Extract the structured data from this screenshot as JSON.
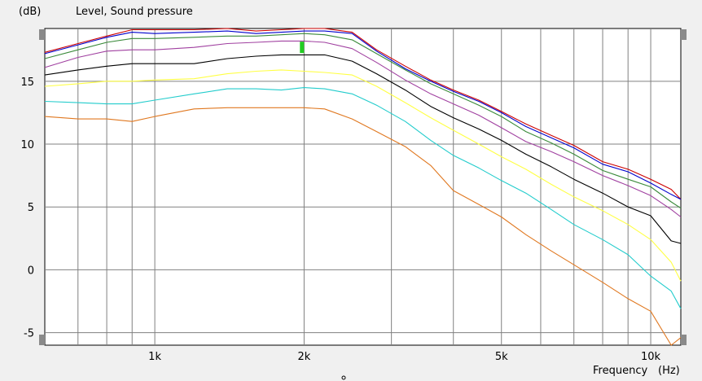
{
  "chart_data": {
    "type": "line",
    "title": "Level, Sound pressure",
    "ylabel": "(dB)",
    "xlabel": "Frequency",
    "xunit": "(Hz)",
    "xscale": "log",
    "xlim": [
      600,
      11500
    ],
    "ylim": [
      -6,
      19.2
    ],
    "yticks": [
      -5,
      0,
      5,
      10,
      15
    ],
    "xticks": [
      1000,
      2000,
      5000,
      10000
    ],
    "xtick_labels": [
      "1k",
      "2k",
      "5k",
      "10k"
    ],
    "grid": true,
    "background": "#ffffff",
    "series": [
      {
        "color": "#cc0000",
        "points": [
          [
            600,
            17.3
          ],
          [
            700,
            18.0
          ],
          [
            800,
            18.6
          ],
          [
            900,
            19.1
          ],
          [
            1000,
            19.1
          ],
          [
            1200,
            19.1
          ],
          [
            1400,
            19.2
          ],
          [
            1600,
            19.0
          ],
          [
            1800,
            19.1
          ],
          [
            2000,
            19.2
          ],
          [
            2200,
            19.2
          ],
          [
            2500,
            18.9
          ],
          [
            2800,
            17.5
          ],
          [
            3200,
            16.2
          ],
          [
            3600,
            15.1
          ],
          [
            4000,
            14.3
          ],
          [
            4500,
            13.5
          ],
          [
            5000,
            12.6
          ],
          [
            5600,
            11.6
          ],
          [
            6300,
            10.7
          ],
          [
            7000,
            9.9
          ],
          [
            8000,
            8.6
          ],
          [
            9000,
            8.0
          ],
          [
            10000,
            7.2
          ],
          [
            11000,
            6.4
          ],
          [
            11500,
            5.6
          ]
        ]
      },
      {
        "color": "#0000cc",
        "points": [
          [
            600,
            17.2
          ],
          [
            700,
            17.9
          ],
          [
            800,
            18.5
          ],
          [
            900,
            18.9
          ],
          [
            1000,
            18.8
          ],
          [
            1200,
            18.9
          ],
          [
            1400,
            19.0
          ],
          [
            1600,
            18.8
          ],
          [
            1800,
            18.9
          ],
          [
            2000,
            19.0
          ],
          [
            2200,
            19.0
          ],
          [
            2500,
            18.8
          ],
          [
            2800,
            17.4
          ],
          [
            3200,
            16.0
          ],
          [
            3600,
            15.0
          ],
          [
            4000,
            14.2
          ],
          [
            4500,
            13.4
          ],
          [
            5000,
            12.5
          ],
          [
            5600,
            11.4
          ],
          [
            6300,
            10.5
          ],
          [
            7000,
            9.7
          ],
          [
            8000,
            8.4
          ],
          [
            9000,
            7.8
          ],
          [
            10000,
            6.9
          ],
          [
            11000,
            6.0
          ],
          [
            11500,
            5.6
          ]
        ]
      },
      {
        "color": "#3a8a3a",
        "points": [
          [
            600,
            16.8
          ],
          [
            700,
            17.5
          ],
          [
            800,
            18.1
          ],
          [
            900,
            18.4
          ],
          [
            1000,
            18.4
          ],
          [
            1200,
            18.5
          ],
          [
            1400,
            18.6
          ],
          [
            1600,
            18.6
          ],
          [
            1800,
            18.7
          ],
          [
            2000,
            18.8
          ],
          [
            2200,
            18.7
          ],
          [
            2500,
            18.3
          ],
          [
            2800,
            17.2
          ],
          [
            3200,
            15.9
          ],
          [
            3600,
            14.8
          ],
          [
            4000,
            14.0
          ],
          [
            4500,
            13.1
          ],
          [
            5000,
            12.2
          ],
          [
            5600,
            11.0
          ],
          [
            6300,
            10.1
          ],
          [
            7000,
            9.2
          ],
          [
            8000,
            7.9
          ],
          [
            9000,
            7.2
          ],
          [
            10000,
            6.6
          ],
          [
            11000,
            5.4
          ],
          [
            11500,
            4.9
          ]
        ]
      },
      {
        "color": "#a040a0",
        "points": [
          [
            600,
            16.1
          ],
          [
            700,
            16.9
          ],
          [
            800,
            17.4
          ],
          [
            900,
            17.5
          ],
          [
            1000,
            17.5
          ],
          [
            1200,
            17.7
          ],
          [
            1400,
            18.0
          ],
          [
            1600,
            18.1
          ],
          [
            1800,
            18.2
          ],
          [
            2000,
            18.2
          ],
          [
            2200,
            18.1
          ],
          [
            2500,
            17.6
          ],
          [
            2800,
            16.5
          ],
          [
            3200,
            15.1
          ],
          [
            3600,
            14.0
          ],
          [
            4000,
            13.2
          ],
          [
            4500,
            12.3
          ],
          [
            5000,
            11.3
          ],
          [
            5600,
            10.2
          ],
          [
            6300,
            9.4
          ],
          [
            7000,
            8.6
          ],
          [
            8000,
            7.5
          ],
          [
            9000,
            6.7
          ],
          [
            10000,
            5.9
          ],
          [
            11000,
            4.8
          ],
          [
            11500,
            4.2
          ]
        ]
      },
      {
        "color": "#000000",
        "points": [
          [
            600,
            15.5
          ],
          [
            700,
            15.9
          ],
          [
            800,
            16.2
          ],
          [
            900,
            16.4
          ],
          [
            1000,
            16.4
          ],
          [
            1200,
            16.4
          ],
          [
            1400,
            16.8
          ],
          [
            1600,
            17.0
          ],
          [
            1800,
            17.1
          ],
          [
            2000,
            17.1
          ],
          [
            2200,
            17.1
          ],
          [
            2500,
            16.6
          ],
          [
            2800,
            15.6
          ],
          [
            3200,
            14.3
          ],
          [
            3600,
            13.0
          ],
          [
            4000,
            12.1
          ],
          [
            4500,
            11.2
          ],
          [
            5000,
            10.3
          ],
          [
            5600,
            9.2
          ],
          [
            6300,
            8.2
          ],
          [
            7000,
            7.2
          ],
          [
            8000,
            6.1
          ],
          [
            9000,
            5.0
          ],
          [
            10000,
            4.3
          ],
          [
            11000,
            2.3
          ],
          [
            11500,
            2.1
          ]
        ]
      },
      {
        "color": "#ffff44",
        "points": [
          [
            600,
            14.6
          ],
          [
            700,
            14.8
          ],
          [
            800,
            15.0
          ],
          [
            900,
            15.0
          ],
          [
            1000,
            15.1
          ],
          [
            1200,
            15.2
          ],
          [
            1400,
            15.6
          ],
          [
            1600,
            15.8
          ],
          [
            1800,
            15.9
          ],
          [
            2000,
            15.8
          ],
          [
            2200,
            15.7
          ],
          [
            2500,
            15.5
          ],
          [
            2800,
            14.6
          ],
          [
            3200,
            13.3
          ],
          [
            3600,
            12.1
          ],
          [
            4000,
            11.1
          ],
          [
            4500,
            10.0
          ],
          [
            5000,
            9.0
          ],
          [
            5600,
            8.0
          ],
          [
            6300,
            6.8
          ],
          [
            7000,
            5.8
          ],
          [
            8000,
            4.7
          ],
          [
            9000,
            3.6
          ],
          [
            10000,
            2.4
          ],
          [
            11000,
            0.6
          ],
          [
            11500,
            -0.9
          ]
        ]
      },
      {
        "color": "#22cccc",
        "points": [
          [
            600,
            13.4
          ],
          [
            700,
            13.3
          ],
          [
            800,
            13.2
          ],
          [
            900,
            13.2
          ],
          [
            1000,
            13.5
          ],
          [
            1200,
            14.0
          ],
          [
            1400,
            14.4
          ],
          [
            1600,
            14.4
          ],
          [
            1800,
            14.3
          ],
          [
            2000,
            14.5
          ],
          [
            2200,
            14.4
          ],
          [
            2500,
            14.0
          ],
          [
            2800,
            13.1
          ],
          [
            3200,
            11.8
          ],
          [
            3600,
            10.3
          ],
          [
            4000,
            9.1
          ],
          [
            4500,
            8.1
          ],
          [
            5000,
            7.1
          ],
          [
            5600,
            6.1
          ],
          [
            6300,
            4.8
          ],
          [
            7000,
            3.6
          ],
          [
            8000,
            2.4
          ],
          [
            9000,
            1.2
          ],
          [
            10000,
            -0.5
          ],
          [
            11000,
            -1.7
          ],
          [
            11500,
            -3.1
          ]
        ]
      },
      {
        "color": "#e07820",
        "points": [
          [
            600,
            12.2
          ],
          [
            700,
            12.0
          ],
          [
            800,
            12.0
          ],
          [
            900,
            11.8
          ],
          [
            1000,
            12.2
          ],
          [
            1200,
            12.8
          ],
          [
            1400,
            12.9
          ],
          [
            1600,
            12.9
          ],
          [
            1800,
            12.9
          ],
          [
            2000,
            12.9
          ],
          [
            2200,
            12.8
          ],
          [
            2500,
            12.0
          ],
          [
            2800,
            11.0
          ],
          [
            3200,
            9.8
          ],
          [
            3600,
            8.3
          ],
          [
            4000,
            6.3
          ],
          [
            4500,
            5.2
          ],
          [
            5000,
            4.2
          ],
          [
            5600,
            2.8
          ],
          [
            6300,
            1.5
          ],
          [
            7000,
            0.4
          ],
          [
            8000,
            -1.0
          ],
          [
            9000,
            -2.3
          ],
          [
            10000,
            -3.3
          ],
          [
            11000,
            -6.0
          ],
          [
            11500,
            -5.4
          ]
        ]
      }
    ]
  },
  "markers": {
    "cursor_marker": {
      "x": 1980,
      "y": 17.7,
      "color": "#22cc22"
    }
  }
}
